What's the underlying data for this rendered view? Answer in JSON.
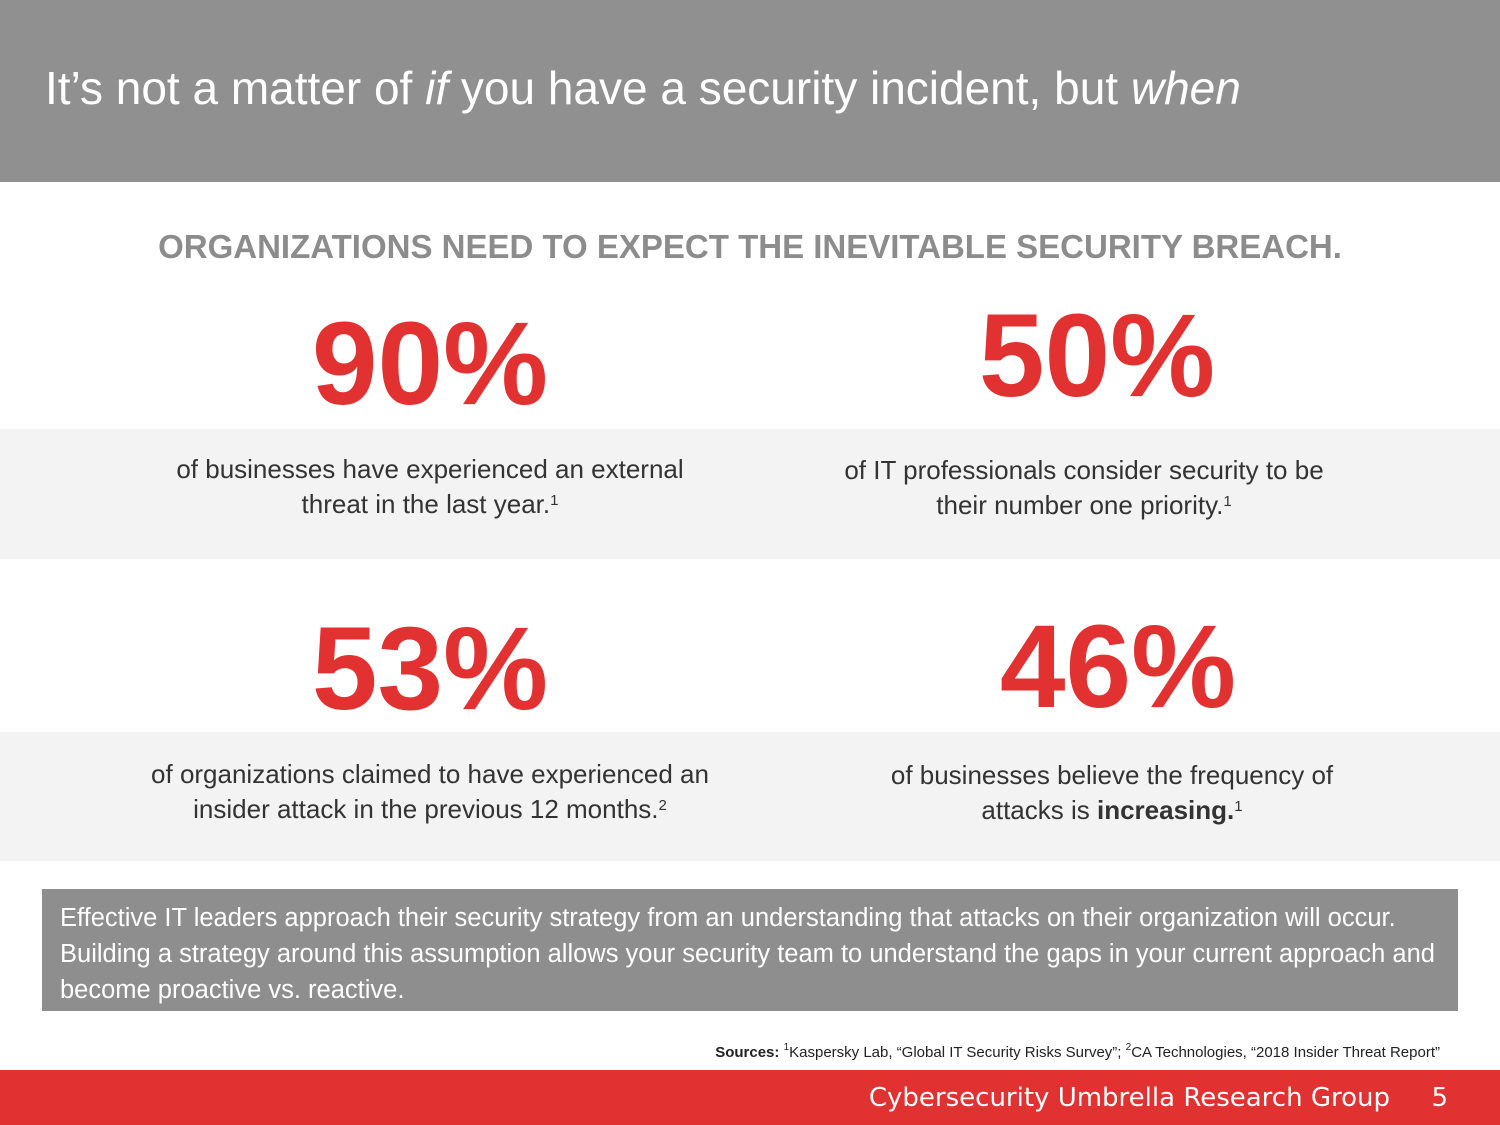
{
  "slide": {
    "title_part1": "It’s not a matter of ",
    "title_if": "if",
    "title_part2": " you have a security incident, but ",
    "title_when": "when",
    "subtitle": "ORGANIZATIONS NEED TO EXPECT THE INEVITABLE SECURITY BREACH."
  },
  "stats": [
    {
      "value": "90%",
      "line1": "of businesses have experienced an external",
      "line2": "threat in the last year.",
      "note": "1"
    },
    {
      "value": "50%",
      "line1": "of IT professionals consider security to be",
      "line2": "their number one priority.",
      "note": "1"
    },
    {
      "value": "53%",
      "line1": "of organizations claimed to have experienced an",
      "line2": "insider attack in the previous 12 months.",
      "note": "2"
    },
    {
      "value": "46%",
      "line1": "of businesses believe the frequency of",
      "line2": "attacks is ",
      "line2_bold": "increasing.",
      "note": "1"
    }
  ],
  "callout": {
    "text": "Effective IT leaders approach their security strategy from an understanding that attacks on their organization will occur. Building a strategy around this assumption allows your security team to understand the gaps in your current approach and become proactive vs. reactive."
  },
  "sources": {
    "label": "Sources:",
    "note1": "1",
    "source1": "Kaspersky Lab, “Global IT Security Risks Survey”; ",
    "note2": "2",
    "source2": "CA Technologies, “2018 Insider Threat Report”"
  },
  "footer": {
    "organization": "Cybersecurity Umbrella Research Group",
    "page_number": "5"
  },
  "colors": {
    "accent_red": "#e13131",
    "header_gray": "#909090",
    "band_gray": "#f3f3f3",
    "callout_gray": "#8e8e8e"
  }
}
